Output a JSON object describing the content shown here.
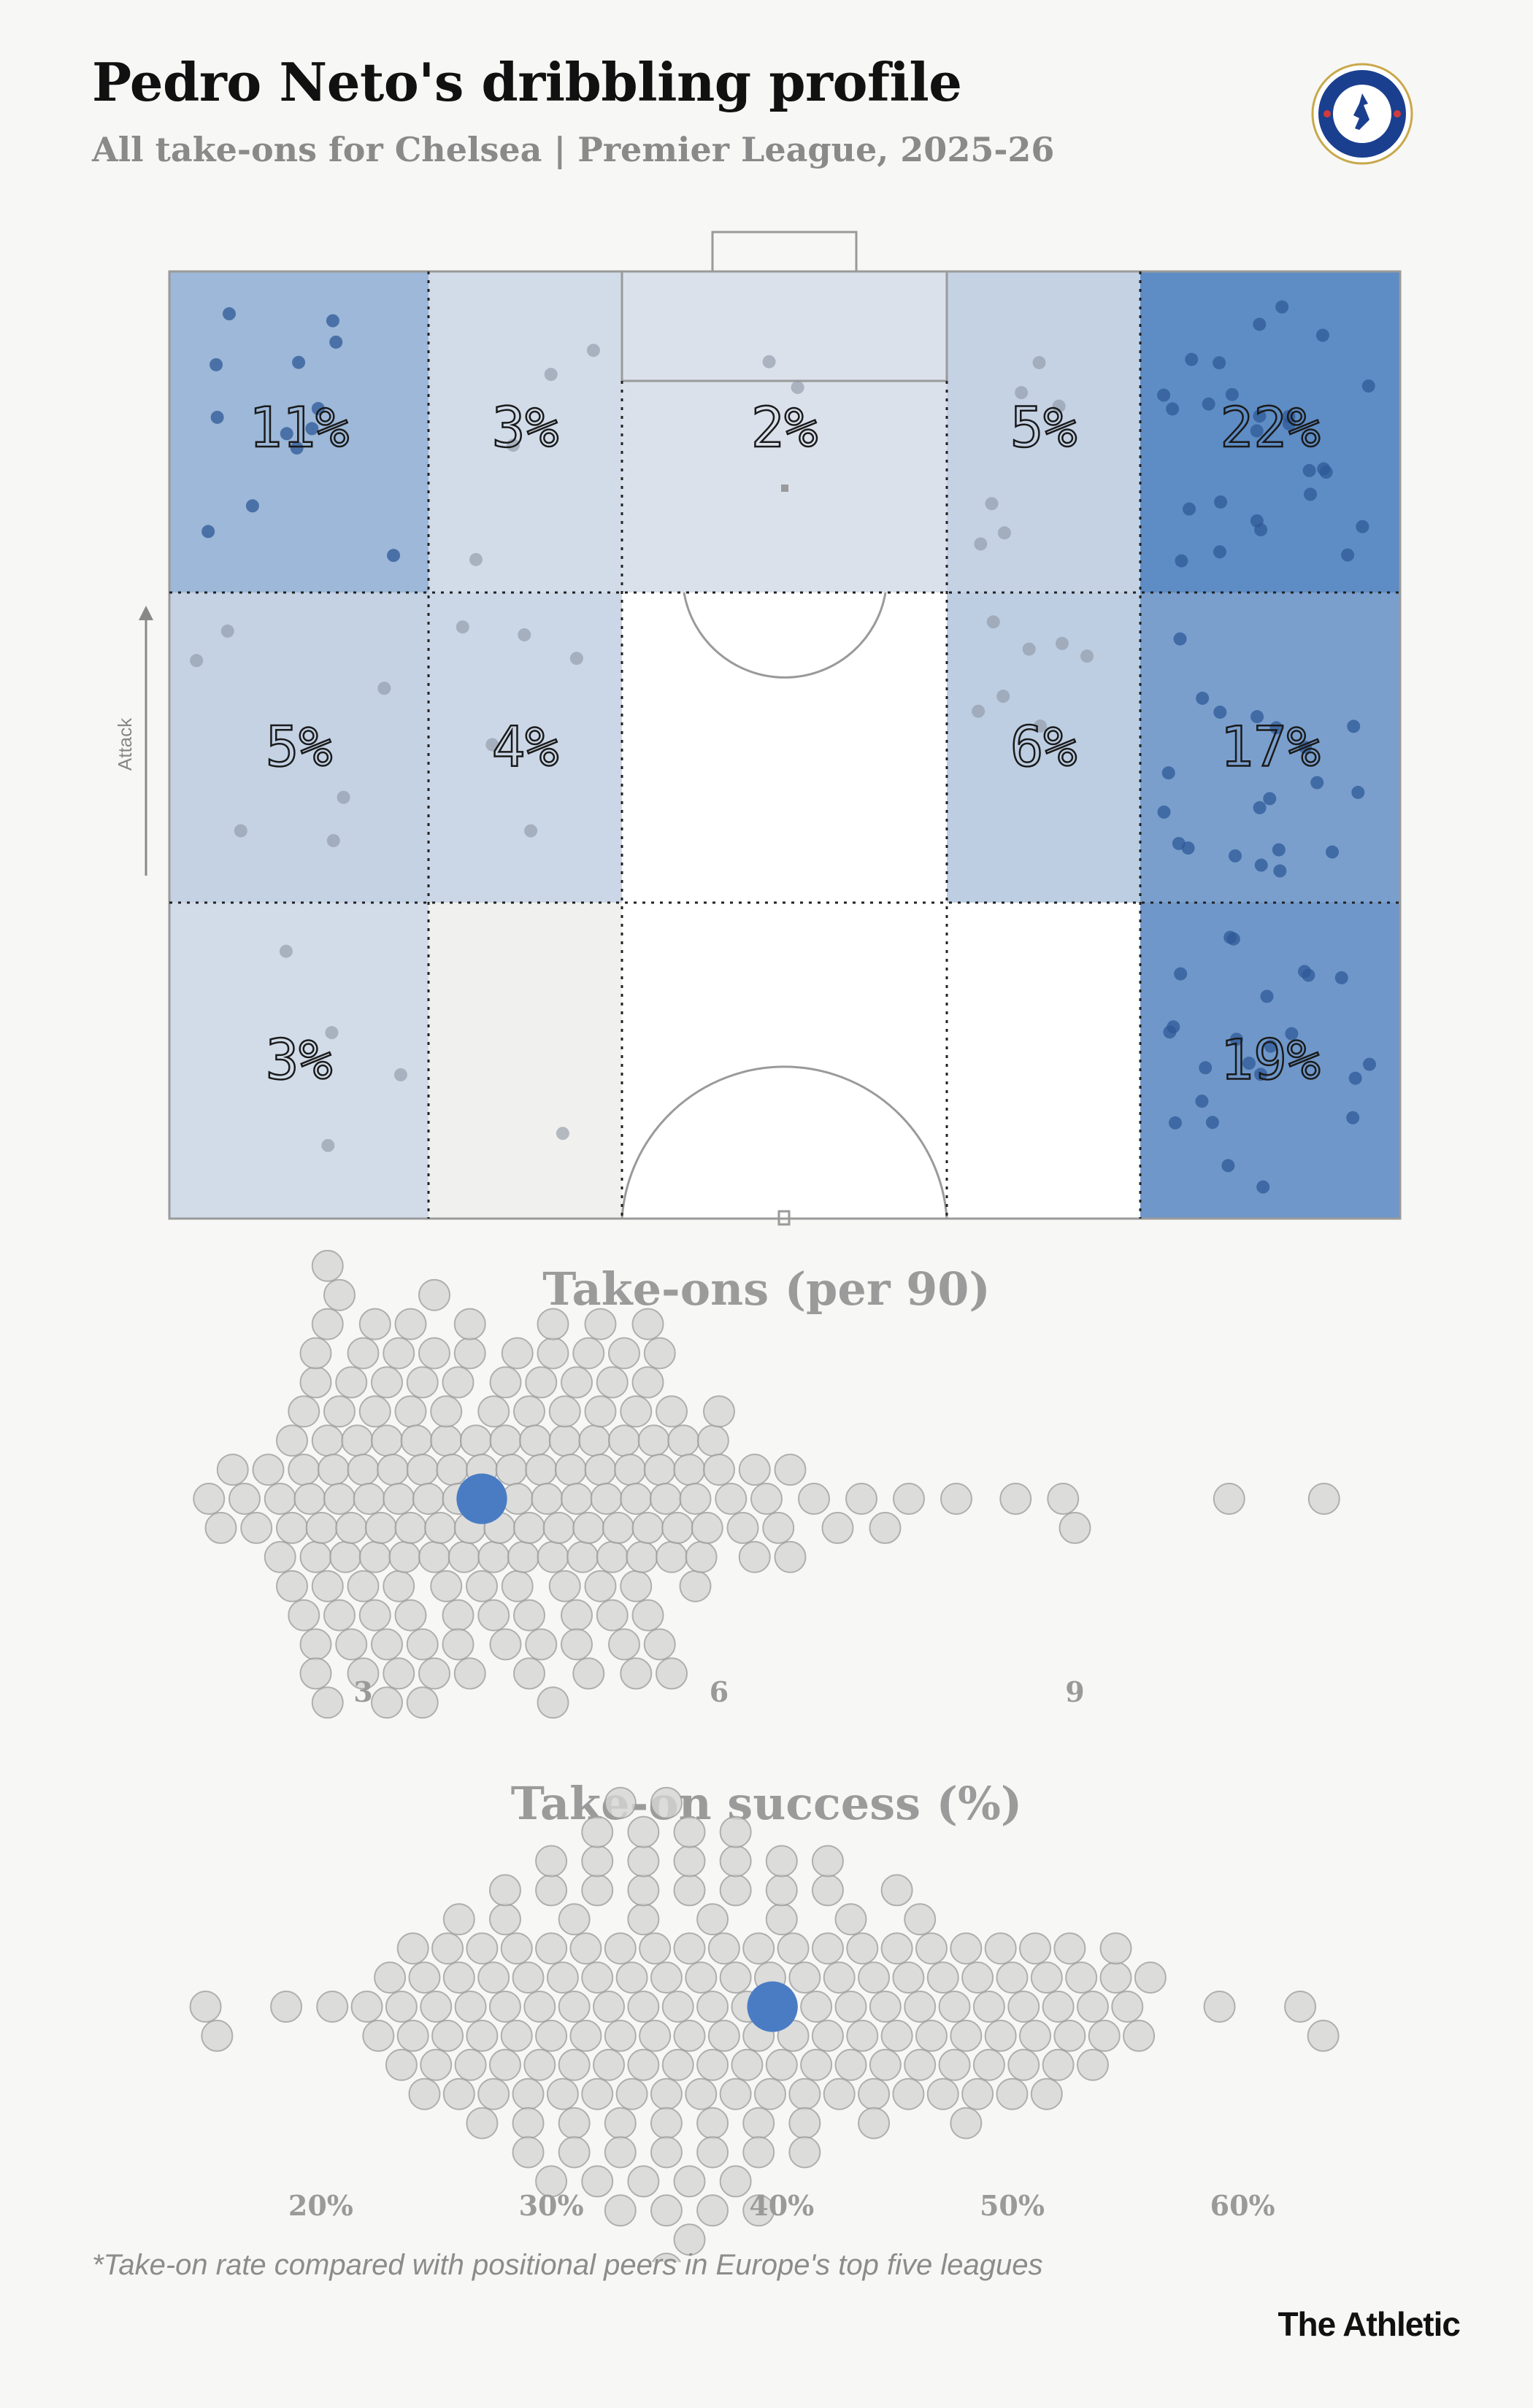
{
  "header": {
    "title": "Pedro Neto's dribbling profile",
    "subtitle": "All take-ons for Chelsea | Premier League, 2025-26",
    "badge_text_top": "CHELSEA",
    "badge_text_bottom": "FOOTBALL CLUB"
  },
  "colors": {
    "accent": "#4a7cc4",
    "dot_gray": "#b8b8b8",
    "zone_high": "#5e8cc4",
    "zone_low": "#eef0f2"
  },
  "chart_data": [
    {
      "type": "heatmap",
      "title": "",
      "axis_label": "Attack",
      "zones": [
        {
          "row": 0,
          "col": 0,
          "value": 11,
          "label": "11%"
        },
        {
          "row": 0,
          "col": 1,
          "value": 3,
          "label": "3%"
        },
        {
          "row": 0,
          "col": 2,
          "value": 2,
          "label": "2%"
        },
        {
          "row": 0,
          "col": 3,
          "value": 5,
          "label": "5%"
        },
        {
          "row": 0,
          "col": 4,
          "value": 22,
          "label": "22%"
        },
        {
          "row": 1,
          "col": 0,
          "value": 5,
          "label": "5%"
        },
        {
          "row": 1,
          "col": 1,
          "value": 4,
          "label": "4%"
        },
        {
          "row": 1,
          "col": 2,
          "value": 0,
          "label": ""
        },
        {
          "row": 1,
          "col": 3,
          "value": 6,
          "label": "6%"
        },
        {
          "row": 1,
          "col": 4,
          "value": 17,
          "label": "17%"
        },
        {
          "row": 2,
          "col": 0,
          "value": 3,
          "label": "3%"
        },
        {
          "row": 2,
          "col": 1,
          "value": 1,
          "label": ""
        },
        {
          "row": 2,
          "col": 2,
          "value": 0,
          "label": ""
        },
        {
          "row": 2,
          "col": 3,
          "value": 0,
          "label": ""
        },
        {
          "row": 2,
          "col": 4,
          "value": 19,
          "label": "19%"
        }
      ]
    },
    {
      "type": "scatter",
      "title": "Take-ons (per 90)",
      "xlabel": "",
      "ticks": [
        3,
        6,
        9
      ],
      "tick_labels": [
        "3",
        "6",
        "9"
      ],
      "xlim": [
        1.6,
        11.2
      ],
      "highlight": 4.0,
      "values": [
        1.7,
        1.8,
        1.9,
        2.0,
        2.1,
        2.2,
        2.3,
        2.4,
        2.5,
        2.55,
        2.6,
        2.65,
        2.7,
        2.75,
        2.8,
        2.85,
        2.9,
        2.95,
        3.0,
        3.05,
        3.1,
        3.15,
        3.2,
        3.25,
        3.3,
        3.35,
        3.4,
        3.45,
        3.5,
        3.55,
        3.6,
        3.65,
        3.7,
        3.75,
        3.8,
        3.85,
        3.9,
        3.95,
        4.0,
        4.05,
        4.1,
        4.15,
        4.2,
        4.25,
        4.3,
        4.35,
        4.4,
        4.45,
        4.5,
        4.55,
        4.6,
        4.65,
        4.7,
        4.75,
        4.8,
        4.85,
        4.9,
        4.95,
        5.0,
        5.05,
        5.1,
        5.15,
        5.2,
        5.25,
        5.3,
        5.35,
        5.4,
        5.45,
        5.5,
        5.55,
        5.6,
        5.65,
        5.7,
        5.75,
        5.8,
        5.85,
        5.9,
        5.95,
        6.0,
        6.1,
        6.2,
        6.3,
        6.4,
        6.5,
        6.6,
        6.8,
        7.0,
        7.2,
        7.4,
        7.6,
        8.0,
        8.5,
        9.0,
        10.3,
        11.1,
        2.3,
        2.5,
        2.6,
        2.7,
        2.8,
        2.9,
        3.0,
        3.1,
        3.2,
        3.3,
        3.4,
        3.5,
        3.6,
        3.7,
        3.8,
        3.9,
        4.0,
        4.1,
        4.2,
        4.3,
        4.4,
        4.5,
        4.6,
        4.7,
        4.8,
        4.9,
        5.0,
        5.1,
        5.2,
        5.3,
        5.4,
        5.5,
        5.6,
        5.8,
        6.0,
        6.3,
        6.6,
        2.4,
        2.6,
        2.8,
        3.0,
        3.2,
        3.4,
        3.6,
        3.8,
        4.2,
        4.4,
        4.6,
        4.8,
        5.0,
        5.2,
        5.4,
        5.6,
        2.5,
        2.7,
        2.9,
        3.1,
        3.3,
        3.5,
        3.7,
        3.9,
        4.3,
        4.5,
        4.7,
        4.9,
        5.1,
        5.3,
        5.5,
        2.6,
        2.8,
        3.0,
        3.2,
        3.4,
        3.6,
        3.8,
        4.1,
        4.4,
        4.8,
        5.3,
        2.4,
        2.6,
        2.7,
        3.1,
        3.5,
        3.9,
        4.6,
        5.0,
        8.9,
        2.7,
        3.3,
        5.4
      ]
    },
    {
      "type": "scatter",
      "title": "Take-on success (%)",
      "xlabel": "",
      "ticks": [
        20,
        30,
        40,
        50,
        60
      ],
      "tick_labels": [
        "20%",
        "30%",
        "40%",
        "50%",
        "60%"
      ],
      "xlim": [
        14,
        65
      ],
      "highlight": 39.6,
      "values": [
        15,
        15.5,
        18.5,
        20.5,
        22,
        23,
        23.5,
        24,
        24.5,
        25,
        25.5,
        26,
        26.5,
        27,
        27.5,
        28,
        28.5,
        29,
        29.5,
        30,
        30.5,
        31,
        31.5,
        32,
        32.5,
        33,
        33.5,
        34,
        34.5,
        35,
        35.5,
        36,
        36.5,
        37,
        37.5,
        38,
        38.5,
        39,
        39.5,
        40,
        40.5,
        41,
        41.5,
        42,
        42.5,
        43,
        43.5,
        44,
        44.5,
        45,
        45.5,
        46,
        46.5,
        47,
        47.5,
        48,
        48.5,
        49,
        49.5,
        50,
        50.5,
        51,
        51.5,
        52,
        52.5,
        53,
        53.5,
        54,
        54.5,
        55,
        55.5,
        56,
        59,
        62.5,
        63.5,
        22.5,
        23.5,
        24.5,
        25.5,
        26.5,
        27.5,
        28.5,
        29.5,
        30.5,
        31.5,
        32.5,
        33.5,
        34.5,
        35.5,
        36.5,
        37.5,
        38.5,
        39.5,
        40.5,
        41.5,
        42.5,
        43.5,
        44.5,
        45.5,
        46.5,
        47.5,
        48.5,
        49.5,
        50.5,
        51.5,
        52.5,
        53.5,
        54.5,
        24,
        26,
        28,
        30,
        32,
        34,
        36,
        38,
        40,
        42,
        44,
        46,
        48,
        50,
        52,
        25,
        27,
        29,
        31,
        33,
        35,
        37,
        39,
        41,
        43,
        45,
        47,
        49,
        51,
        26,
        28,
        30,
        32,
        34,
        36,
        38,
        40,
        42,
        44,
        46,
        48,
        27,
        29,
        31,
        33,
        35,
        37,
        39,
        41,
        43,
        45,
        28,
        30,
        32,
        34,
        36,
        38,
        40,
        42,
        29,
        31,
        33,
        35,
        37,
        39,
        41,
        30,
        32,
        34,
        36,
        38,
        40,
        31,
        33,
        35,
        37,
        39,
        32,
        34,
        36,
        38,
        33,
        35,
        37,
        34,
        36,
        35
      ]
    }
  ],
  "footer": {
    "footnote": "*Take-on rate compared with positional peers in Europe's top five leagues",
    "brand": "The Athletic"
  }
}
